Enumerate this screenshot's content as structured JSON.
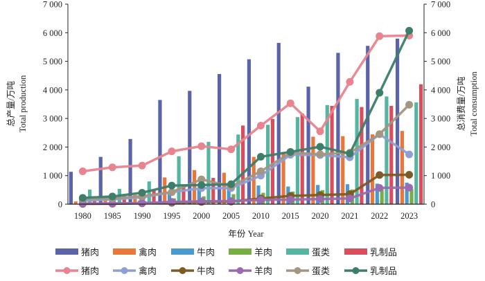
{
  "chart_data": {
    "type": "bar+line",
    "categories": [
      "1980",
      "1985",
      "1990",
      "1995",
      "2000",
      "2005",
      "2010",
      "2015",
      "2020",
      "2021",
      "2022",
      "2023"
    ],
    "xlabel": "年份 Year",
    "ylabel_left": [
      "总产量/万吨",
      "Total production"
    ],
    "ylabel_right": [
      "总消费量/万吨",
      "Total consumption"
    ],
    "ylim_left": [
      0,
      7000
    ],
    "ylim_right": [
      0,
      7000
    ],
    "yticks": [
      0,
      1000,
      2000,
      3000,
      4000,
      5000,
      6000,
      7000
    ],
    "ytick_labels": [
      "0",
      "1 000",
      "2 000",
      "3 000",
      "4 000",
      "5 000",
      "6 000",
      "7 000"
    ],
    "grid": false,
    "legend_position": "bottom",
    "bar_series": [
      {
        "name": "猪肉",
        "color": "#5b64a8",
        "values": [
          1134,
          1655,
          2281,
          3648,
          3966,
          4555,
          5071,
          5645,
          4113,
          5296,
          5541,
          5794
        ]
      },
      {
        "name": "禽肉",
        "color": "#e8783a",
        "values": [
          95,
          160,
          322,
          935,
          1192,
          1100,
          1656,
          1826,
          2361,
          2380,
          2443,
          2563
        ]
      },
      {
        "name": "牛肉",
        "color": "#4a9ad0",
        "values": [
          27,
          47,
          126,
          415,
          513,
          568,
          653,
          617,
          672,
          698,
          718,
          753
        ]
      },
      {
        "name": "羊肉",
        "color": "#78ad45",
        "values": [
          45,
          59,
          107,
          202,
          274,
          350,
          399,
          441,
          492,
          514,
          525,
          531
        ]
      },
      {
        "name": "蛋类",
        "color": "#55b5a0",
        "values": [
          512,
          535,
          795,
          1677,
          2182,
          2438,
          2777,
          3046,
          3468,
          3683,
          3770,
          3563
        ]
      },
      {
        "name": "乳制品",
        "color": "#d94d5c",
        "values": [
          137,
          289,
          475,
          673,
          919,
          2753,
          2987,
          3170,
          3440,
          3400,
          3440,
          4197
        ]
      }
    ],
    "line_series": [
      {
        "name": "猪肉",
        "color": "#e8848d",
        "values": [
          1150,
          1290,
          1350,
          1850,
          2030,
          1920,
          2750,
          3530,
          2550,
          4280,
          5880,
          5900
        ]
      },
      {
        "name": "禽肉",
        "color": "#8f9fd3",
        "values": [
          120,
          170,
          240,
          420,
          560,
          560,
          1000,
          1730,
          1720,
          1640,
          2450,
          1740
        ]
      },
      {
        "name": "牛肉",
        "color": "#7d5b25",
        "values": [
          10,
          15,
          30,
          50,
          80,
          90,
          200,
          290,
          320,
          350,
          1020,
          1030
        ]
      },
      {
        "name": "羊肉",
        "color": "#9a6bb0",
        "values": [
          20,
          25,
          40,
          80,
          100,
          110,
          150,
          160,
          180,
          200,
          570,
          580
        ]
      },
      {
        "name": "蛋类",
        "color": "#a39682",
        "values": [
          180,
          200,
          280,
          420,
          870,
          620,
          1150,
          1800,
          1750,
          1800,
          2450,
          3480
        ]
      },
      {
        "name": "乳制品",
        "color": "#3e7d6a",
        "values": [
          220,
          270,
          400,
          650,
          670,
          700,
          1660,
          1830,
          2010,
          1770,
          3900,
          6070
        ]
      }
    ]
  }
}
